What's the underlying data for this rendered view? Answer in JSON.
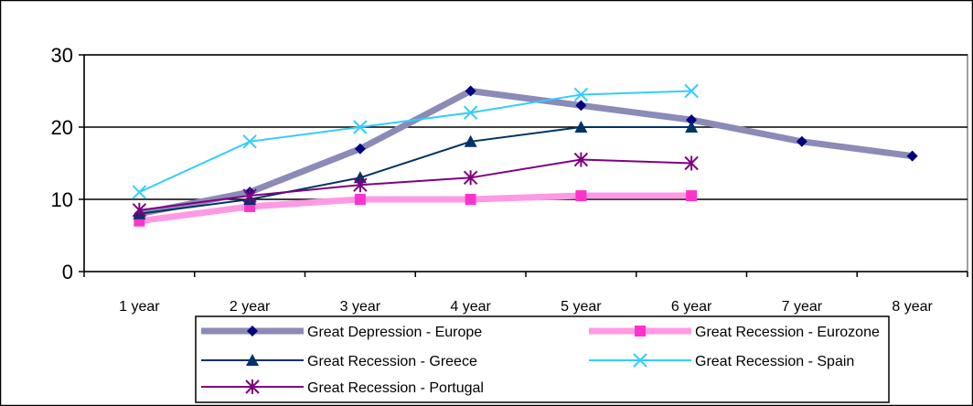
{
  "chart_data": {
    "type": "line",
    "title": "",
    "xlabel": "",
    "ylabel": "",
    "ylim": [
      0,
      30
    ],
    "yticks": [
      0,
      10,
      20,
      30
    ],
    "categories": [
      "1 year",
      "2 year",
      "3 year",
      "4 year",
      "5 year",
      "6 year",
      "7 year",
      "8 year"
    ],
    "grid": "horizontal",
    "legend_position": "bottom",
    "series": [
      {
        "name": "Great Depression - Europe",
        "values": [
          8,
          11,
          17,
          25,
          23,
          21,
          18,
          16
        ],
        "color": "#000080",
        "line_color": "#8b8bb8",
        "marker": "diamond",
        "thick": true
      },
      {
        "name": "Great Recession - Eurozone",
        "values": [
          7,
          9,
          10,
          10,
          10.5,
          10.5,
          null,
          null
        ],
        "color": "#ff33cc",
        "line_color": "#ff99e6",
        "marker": "square",
        "thick": true
      },
      {
        "name": "Great Recession - Greece",
        "values": [
          8,
          10,
          13,
          18,
          20,
          20,
          null,
          null
        ],
        "color": "#003366",
        "line_color": "#003366",
        "marker": "triangle",
        "thick": false
      },
      {
        "name": "Great Recession - Spain",
        "values": [
          11,
          18,
          20,
          22,
          24.5,
          25,
          null,
          null
        ],
        "color": "#33ccff",
        "line_color": "#33ccff",
        "marker": "x",
        "thick": false
      },
      {
        "name": "Great Recession - Portugal",
        "values": [
          8.5,
          10.5,
          12,
          13,
          15.5,
          15,
          null,
          null
        ],
        "color": "#800080",
        "line_color": "#800080",
        "marker": "star",
        "thick": false
      }
    ]
  }
}
